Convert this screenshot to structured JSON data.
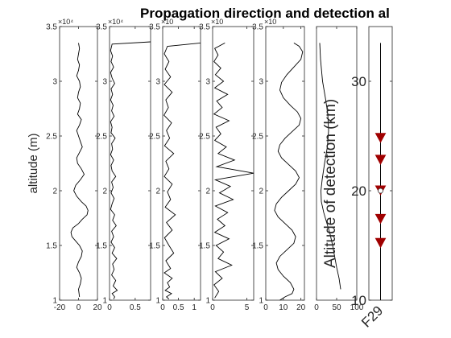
{
  "chart_data": {
    "type": "line",
    "title": "Propagation direction and detection al",
    "panels": [
      {
        "id": "p1",
        "xlim": [
          -20,
          20
        ],
        "xticks": [
          -20,
          0,
          20
        ],
        "xtick_labels": [
          "-20",
          "0",
          "20"
        ],
        "ylim": [
          10000,
          35000
        ],
        "yticks": [
          10000,
          15000,
          20000,
          25000,
          30000,
          35000
        ],
        "ytick_labels": [
          "1",
          "1.5",
          "2",
          "2.5",
          "3",
          "3.5"
        ],
        "y_exponent": "×10⁴",
        "ylabel": "altitude (m)",
        "series": [
          {
            "x": [
              0,
              1,
              0,
              -1,
              1,
              0,
              -2,
              1,
              2,
              0,
              -1,
              2,
              1,
              -1,
              3,
              1,
              -2,
              0,
              2,
              4,
              1,
              -2,
              -1,
              3,
              6,
              2,
              -3,
              -5,
              -2,
              3,
              8,
              10,
              9,
              4,
              0,
              -6,
              -8,
              -7,
              -3,
              1,
              4,
              3,
              0,
              -2,
              1,
              3,
              2,
              0,
              1
            ],
            "y": [
              33500,
              33000,
              32500,
              32000,
              31500,
              31000,
              30500,
              30000,
              29500,
              29000,
              28500,
              28000,
              27500,
              27000,
              26500,
              26000,
              25500,
              25000,
              24500,
              24000,
              23500,
              23000,
              22500,
              22000,
              21500,
              21000,
              20500,
              20000,
              19500,
              19000,
              18600,
              18200,
              17800,
              17400,
              17000,
              16600,
              16200,
              15800,
              15400,
              15000,
              14500,
              14000,
              13500,
              13000,
              12500,
              12000,
              11500,
              11000,
              10300
            ]
          }
        ]
      },
      {
        "id": "p2",
        "xlim": [
          0,
          0.8
        ],
        "xticks": [
          0,
          0.5
        ],
        "xtick_labels": [
          "0",
          "0.5"
        ],
        "ylim": [
          10000,
          35000
        ],
        "yticks": [
          10000,
          15000,
          20000,
          25000,
          30000,
          35000
        ],
        "ytick_labels": [
          "1",
          "1.5",
          "2",
          "2.5",
          "3",
          "3.5"
        ],
        "y_exponent": "×10⁴",
        "series": [
          {
            "x": [
              0.8,
              0.05,
              0.02,
              0.06,
              0.03,
              0.08,
              0.02,
              0.05,
              0.1,
              0.03,
              0.06,
              0.02,
              0.07,
              0.04,
              0.09,
              0.02,
              0.05,
              0.03,
              0.11,
              0.04,
              0.06,
              0.02,
              0.08,
              0.03,
              0.05,
              0.12,
              0.04,
              0.07,
              0.03,
              0.09,
              0.05,
              0.02,
              0.1,
              0.06,
              0.13,
              0.04,
              0.08,
              0.03,
              0.1,
              0.05,
              0.14,
              0.06,
              0.09,
              0.04,
              0.12,
              0.07,
              0.15,
              0.05,
              0.1,
              0.08
            ],
            "y": [
              33600,
              33400,
              32800,
              32300,
              31800,
              31300,
              30800,
              30300,
              29800,
              29300,
              28800,
              28300,
              27800,
              27300,
              26800,
              26300,
              25800,
              25300,
              24800,
              24300,
              23800,
              23300,
              22800,
              22300,
              21800,
              21300,
              20800,
              20300,
              19800,
              19300,
              18800,
              18300,
              17800,
              17300,
              16800,
              16300,
              15800,
              15300,
              14800,
              14300,
              13800,
              13300,
              12800,
              12300,
              11800,
              11300,
              10900,
              10600,
              10300,
              10100
            ]
          }
        ]
      },
      {
        "id": "p3",
        "xlim": [
          0,
          1.2
        ],
        "xticks": [
          0,
          0.5,
          1
        ],
        "xtick_labels": [
          "0",
          "0.5",
          "1"
        ],
        "ylim": [
          10000,
          35000
        ],
        "yticks": [
          10000,
          15000,
          20000,
          25000,
          30000,
          35000
        ],
        "ytick_labels": [
          "1",
          "1.5",
          "2",
          "2.5",
          "3",
          "3.5"
        ],
        "y_exponent": "×10",
        "series": [
          {
            "x": [
              1.2,
              0.15,
              0.05,
              0.2,
              0.08,
              0.25,
              0.05,
              0.3,
              0.1,
              0.18,
              0.04,
              0.28,
              0.12,
              0.22,
              0.06,
              0.35,
              0.1,
              0.2,
              0.05,
              0.3,
              0.15,
              0.25,
              0.08,
              0.4,
              0.12,
              0.3,
              0.06,
              0.2,
              0.35,
              0.1,
              0.25,
              0.05,
              0.3,
              0.15,
              0.22,
              0.08,
              0.28,
              0.12,
              0.2
            ],
            "y": [
              33500,
              33200,
              32500,
              31800,
              31100,
              30400,
              29700,
              29000,
              28300,
              27600,
              26900,
              26200,
              25500,
              24800,
              24100,
              23400,
              22700,
              22000,
              21300,
              20600,
              19900,
              19200,
              18500,
              17800,
              17100,
              16400,
              15700,
              15000,
              14300,
              13600,
              12900,
              12500,
              12000,
              11600,
              11200,
              10900,
              10600,
              10300,
              10100
            ]
          }
        ]
      },
      {
        "id": "p4",
        "xlim": [
          0,
          6
        ],
        "xticks": [
          0,
          5
        ],
        "xtick_labels": [
          "0",
          "5"
        ],
        "ylim": [
          10000,
          35000
        ],
        "yticks": [
          10000,
          15000,
          20000,
          25000,
          30000,
          35000
        ],
        "ytick_labels": [
          "1",
          "1.5",
          "2",
          "2.5",
          "3",
          "3.5"
        ],
        "y_exponent": "×10",
        "series": [
          {
            "x": [
              1.8,
              0.3,
              0.8,
              0.2,
              1.2,
              0.4,
              1.6,
              0.3,
              2.2,
              0.6,
              1.4,
              0.2,
              2.4,
              0.5,
              1.2,
              0.3,
              2.0,
              0.8,
              3.2,
              0.6,
              6.0,
              0.4,
              2.6,
              1.0,
              3.0,
              0.4,
              2.2,
              0.7,
              1.8,
              0.3,
              2.4,
              0.5,
              1.6,
              0.8,
              2.8,
              0.4,
              1.4,
              0.2,
              0.9,
              0.3
            ],
            "y": [
              33500,
              33000,
              32400,
              31800,
              31200,
              30600,
              30000,
              29400,
              28800,
              28200,
              27600,
              27000,
              26400,
              25800,
              25200,
              24600,
              24000,
              23400,
              22800,
              22200,
              21600,
              21000,
              20400,
              19800,
              19200,
              18600,
              18000,
              17400,
              16800,
              16200,
              15600,
              15000,
              14400,
              13800,
              13200,
              12600,
              12000,
              11400,
              10800,
              10200
            ]
          }
        ]
      },
      {
        "id": "p5",
        "xlim": [
          0,
          22
        ],
        "xticks": [
          0,
          10,
          20
        ],
        "xtick_labels": [
          "0",
          "10",
          "20"
        ],
        "ylim": [
          10000,
          35000
        ],
        "yticks": [
          10000,
          15000,
          20000,
          25000,
          30000,
          35000
        ],
        "ytick_labels": [
          "1",
          "1.5",
          "2",
          "2.5",
          "3",
          "3.5"
        ],
        "y_exponent": "×10",
        "series": [
          {
            "x": [
              16,
              19,
              21,
              20,
              16,
              12,
              9,
              8,
              10,
              14,
              18,
              20,
              19,
              15,
              11,
              8,
              7,
              9,
              13,
              17,
              19,
              17,
              13,
              9,
              6,
              5,
              7,
              11,
              15,
              17,
              16,
              12,
              8,
              6,
              7,
              10,
              14,
              16,
              15,
              11,
              8
            ],
            "y": [
              33500,
              33200,
              32700,
              32000,
              31300,
              30600,
              29900,
              29200,
              28500,
              27800,
              27200,
              26600,
              26000,
              25400,
              24800,
              24200,
              23600,
              23000,
              22400,
              21800,
              21200,
              20600,
              20000,
              19400,
              18800,
              18200,
              17600,
              17000,
              16400,
              15800,
              15200,
              14600,
              14000,
              13400,
              12800,
              12200,
              11600,
              11000,
              10600,
              10300,
              10000
            ]
          }
        ]
      },
      {
        "id": "p6",
        "xlim": [
          0,
          100
        ],
        "xticks": [
          0,
          50,
          100
        ],
        "xtick_labels": [
          "0",
          "50",
          "100"
        ],
        "ylim": [
          10000,
          35000
        ],
        "ylabel": "Altitude of detection (km)",
        "series": [
          {
            "x": [
              8,
              10,
              15,
              22,
              28,
              30,
              27,
              20,
              14,
              11,
              12,
              18,
              26,
              34,
              40,
              45,
              50,
              56,
              60
            ],
            "y": [
              33500,
              32000,
              30000,
              28500,
              27000,
              25500,
              24000,
              22500,
              21000,
              20000,
              19000,
              18000,
              17000,
              16000,
              15000,
              14000,
              13000,
              12000,
              11000
            ]
          }
        ]
      },
      {
        "id": "p7",
        "ylim": [
          10000,
          35000
        ],
        "yticks": [
          10000,
          20000,
          30000
        ],
        "ytick_labels": [
          "10",
          "20",
          "30"
        ],
        "xtick_labels": [
          "F29"
        ],
        "marker_color": "#a00000",
        "series": [
          {
            "x": [
              0,
              0,
              0,
              0,
              0
            ],
            "y": [
              24800,
              22800,
              20000,
              17400,
              15200
            ]
          }
        ]
      }
    ]
  }
}
